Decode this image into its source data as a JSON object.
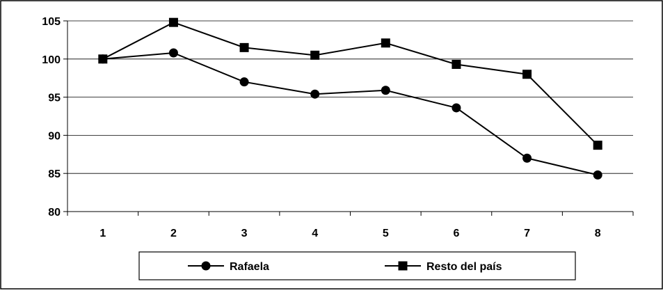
{
  "chart_data": {
    "type": "line",
    "categories": [
      "1",
      "2",
      "3",
      "4",
      "5",
      "6",
      "7",
      "8"
    ],
    "series": [
      {
        "name": "Rafaela",
        "marker": "circle",
        "values": [
          100,
          100.8,
          97.0,
          95.4,
          95.9,
          93.6,
          87.0,
          84.8
        ]
      },
      {
        "name": "Resto del país",
        "marker": "square",
        "values": [
          100,
          104.8,
          101.5,
          100.5,
          102.1,
          99.3,
          98.0,
          88.7
        ]
      }
    ],
    "ylim": [
      80,
      105
    ],
    "yticks": [
      80,
      85,
      90,
      95,
      100,
      105
    ],
    "grid": true,
    "legend": "bottom",
    "colors": {
      "line": "#000000",
      "grid": "#000000",
      "background": "#ffffff"
    }
  }
}
